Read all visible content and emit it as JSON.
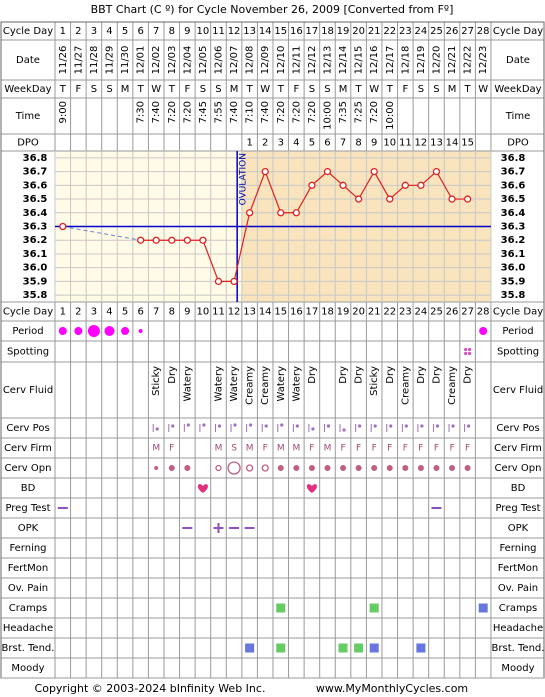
{
  "title": "BBT Chart (C º) for Cycle November 26, 2009  [Converted from Fº]",
  "row_labels": {
    "cycle_day": "Cycle Day",
    "date": "Date",
    "weekday": "WeekDay",
    "time": "Time",
    "dpo": "DPO",
    "period": "Period",
    "spotting": "Spotting",
    "cerv_fluid": "Cerv Fluid",
    "cerv_pos": "Cerv Pos",
    "cerv_firm": "Cerv Firm",
    "cerv_opn": "Cerv Opn",
    "bd": "BD",
    "preg_test": "Preg Test",
    "opk": "OPK",
    "ferning": "Ferning",
    "fertmon": "FertMon",
    "ov_pain": "Ov. Pain",
    "cramps": "Cramps",
    "headache": "Headache",
    "brst_tend": "Brst. Tend.",
    "moody": "Moody"
  },
  "cycle_days": [
    1,
    2,
    3,
    4,
    5,
    6,
    7,
    8,
    9,
    10,
    11,
    12,
    13,
    14,
    15,
    16,
    17,
    18,
    19,
    20,
    21,
    22,
    23,
    24,
    25,
    26,
    27,
    28
  ],
  "dates": [
    "11/26",
    "11/27",
    "11/28",
    "11/29",
    "11/30",
    "12/01",
    "12/02",
    "12/03",
    "12/04",
    "12/05",
    "12/06",
    "12/07",
    "12/08",
    "12/09",
    "12/10",
    "12/11",
    "12/12",
    "12/13",
    "12/14",
    "12/15",
    "12/16",
    "12/17",
    "12/18",
    "12/19",
    "12/20",
    "12/21",
    "12/22",
    "12/23"
  ],
  "weekdays": [
    "T",
    "F",
    "S",
    "S",
    "M",
    "T",
    "W",
    "T",
    "F",
    "S",
    "S",
    "M",
    "T",
    "W",
    "T",
    "F",
    "S",
    "S",
    "M",
    "T",
    "W",
    "T",
    "F",
    "S",
    "S",
    "M",
    "T",
    "W"
  ],
  "times": [
    "9:00",
    null,
    null,
    null,
    null,
    "7:30",
    "7:40",
    "7:20",
    "7:20",
    "7:45",
    "7:55",
    "7:40",
    "7:10",
    "7:40",
    "7:20",
    "7:20",
    "7:20",
    "10:00",
    "7:35",
    "7:25",
    "7:20",
    "10:00",
    null,
    null,
    null,
    null,
    null,
    null
  ],
  "dpo": [
    null,
    null,
    null,
    null,
    null,
    null,
    null,
    null,
    null,
    null,
    null,
    null,
    1,
    2,
    3,
    4,
    5,
    6,
    7,
    8,
    9,
    10,
    11,
    12,
    13,
    14,
    15,
    null
  ],
  "chart_data": {
    "type": "line",
    "annotation": "OVULATION",
    "coverline": 36.3,
    "color": "#e02020",
    "coverline_color": "#0000cc",
    "ylim": [
      35.75,
      36.85
    ],
    "yticks": [
      35.8,
      35.9,
      {
        "value": 36,
        "label": "36.0"
      },
      36.1,
      36.2,
      36.3,
      36.4,
      36.5,
      36.6,
      36.7,
      36.8
    ],
    "values": [
      36.3,
      null,
      null,
      null,
      null,
      36.2,
      36.2,
      36.2,
      36.2,
      36.2,
      35.9,
      35.9,
      36.4,
      36.7,
      36.4,
      36.4,
      36.6,
      36.7,
      36.6,
      36.5,
      36.7,
      36.5,
      36.6,
      36.6,
      36.7,
      36.5,
      36.5,
      null
    ]
  },
  "cerv_fluid": [
    null,
    null,
    null,
    null,
    null,
    null,
    "Sticky",
    "Dry",
    "Watery",
    null,
    "Watery",
    "Watery",
    "Creamy",
    "Creamy",
    "Watery",
    "Watery",
    "Dry",
    null,
    "Dry",
    "Dry",
    "Sticky",
    "Dry",
    "Creamy",
    "Dry",
    "Dry",
    "Creamy",
    "Dry",
    null
  ],
  "cerv_firm": [
    null,
    null,
    null,
    null,
    null,
    null,
    "M",
    "F",
    null,
    null,
    "M",
    "S",
    "M",
    "F",
    "M",
    "M",
    "F",
    "M",
    "F",
    "F",
    "F",
    "F",
    "F",
    "F",
    "F",
    "F",
    "F",
    null
  ],
  "footer": {
    "copyright": "Copyright © 2003-2024 bInfinity Web Inc.",
    "site": "www.MyMonthlyCycles.com"
  }
}
